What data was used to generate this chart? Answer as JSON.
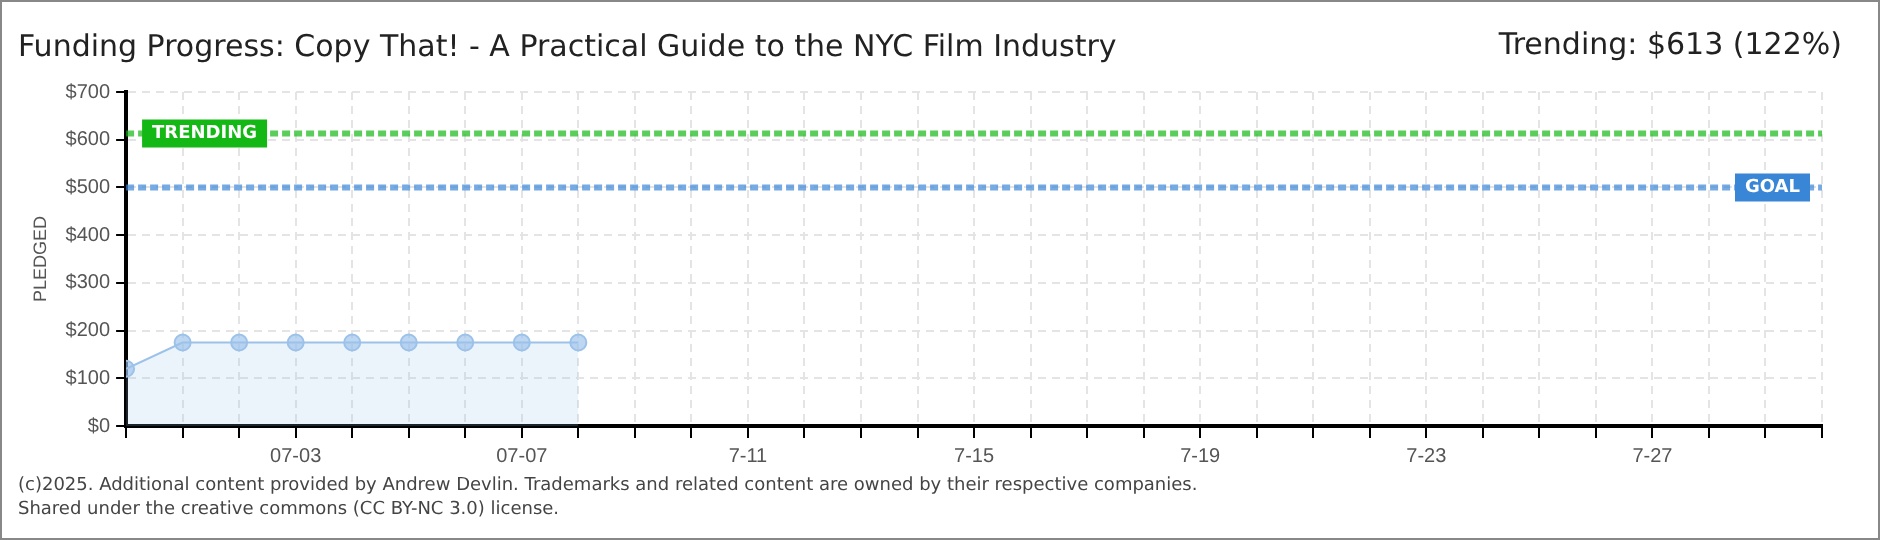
{
  "chart_data": {
    "type": "area",
    "title": "Funding Progress: Copy That! - A Practical Guide to the NYC Film Industry",
    "subtitle": "Trending: $613 (122%)",
    "ylabel": "PLEDGED",
    "x": [
      "2025-06-30",
      "2025-07-01",
      "2025-07-02",
      "2025-07-03",
      "2025-07-04",
      "2025-07-05",
      "2025-07-06",
      "2025-07-07",
      "2025-07-08"
    ],
    "series": [
      {
        "color": "#9cc2ea",
        "values": [
          120,
          175,
          175,
          175,
          175,
          175,
          175,
          175,
          175
        ]
      }
    ],
    "xlim": [
      "2025-06-30",
      "2025-07-30"
    ],
    "xticks": [
      {
        "value": "2025-06-30",
        "label": null
      },
      {
        "value": "2025-07-01",
        "label": null
      },
      {
        "value": "2025-07-02",
        "label": null
      },
      {
        "value": "2025-07-03",
        "label": "07-03"
      },
      {
        "value": "2025-07-04",
        "label": null
      },
      {
        "value": "2025-07-05",
        "label": null
      },
      {
        "value": "2025-07-06",
        "label": null
      },
      {
        "value": "2025-07-07",
        "label": "07-07"
      },
      {
        "value": "2025-07-08",
        "label": null
      },
      {
        "value": "2025-07-09",
        "label": null
      },
      {
        "value": "2025-07-10",
        "label": null
      },
      {
        "value": "2025-07-11",
        "label": "7-11"
      },
      {
        "value": "2025-07-12",
        "label": null
      },
      {
        "value": "2025-07-13",
        "label": null
      },
      {
        "value": "2025-07-14",
        "label": null
      },
      {
        "value": "2025-07-15",
        "label": "7-15"
      },
      {
        "value": "2025-07-16",
        "label": null
      },
      {
        "value": "2025-07-17",
        "label": null
      },
      {
        "value": "2025-07-18",
        "label": null
      },
      {
        "value": "2025-07-19",
        "label": "7-19"
      },
      {
        "value": "2025-07-20",
        "label": null
      },
      {
        "value": "2025-07-21",
        "label": null
      },
      {
        "value": "2025-07-22",
        "label": null
      },
      {
        "value": "2025-07-23",
        "label": "7-23"
      },
      {
        "value": "2025-07-24",
        "label": null
      },
      {
        "value": "2025-07-25",
        "label": null
      },
      {
        "value": "2025-07-26",
        "label": null
      },
      {
        "value": "2025-07-27",
        "label": "7-27"
      },
      {
        "value": "2025-07-28",
        "label": null
      },
      {
        "value": "2025-07-29",
        "label": null
      },
      {
        "value": "2025-07-30",
        "label": null
      }
    ],
    "ylim": [
      0,
      700
    ],
    "yticks": [
      {
        "value": 0,
        "label": "$0"
      },
      {
        "value": 100,
        "label": "$100"
      },
      {
        "value": 200,
        "label": "$200"
      },
      {
        "value": 300,
        "label": "$300"
      },
      {
        "value": 400,
        "label": "$400"
      },
      {
        "value": 500,
        "label": "$500"
      },
      {
        "value": 600,
        "label": "$600"
      },
      {
        "value": 700,
        "label": "$700"
      }
    ],
    "ref_lines": [
      {
        "axis": "y",
        "value": 613,
        "label": "TRENDING",
        "color": "#14b814",
        "line_style": "dashed"
      },
      {
        "axis": "y",
        "value": 500,
        "label": "GOAL",
        "color": "#3a86d6",
        "line_style": "dashed"
      }
    ],
    "grid": true,
    "legend": false,
    "marker": "circle",
    "annotations": [
      "(c)2025. Additional content provided by Andrew Devlin. Trademarks and related content are owned by their respective companies.",
      "Shared under the creative commons (CC BY-NC 3.0) license."
    ]
  }
}
